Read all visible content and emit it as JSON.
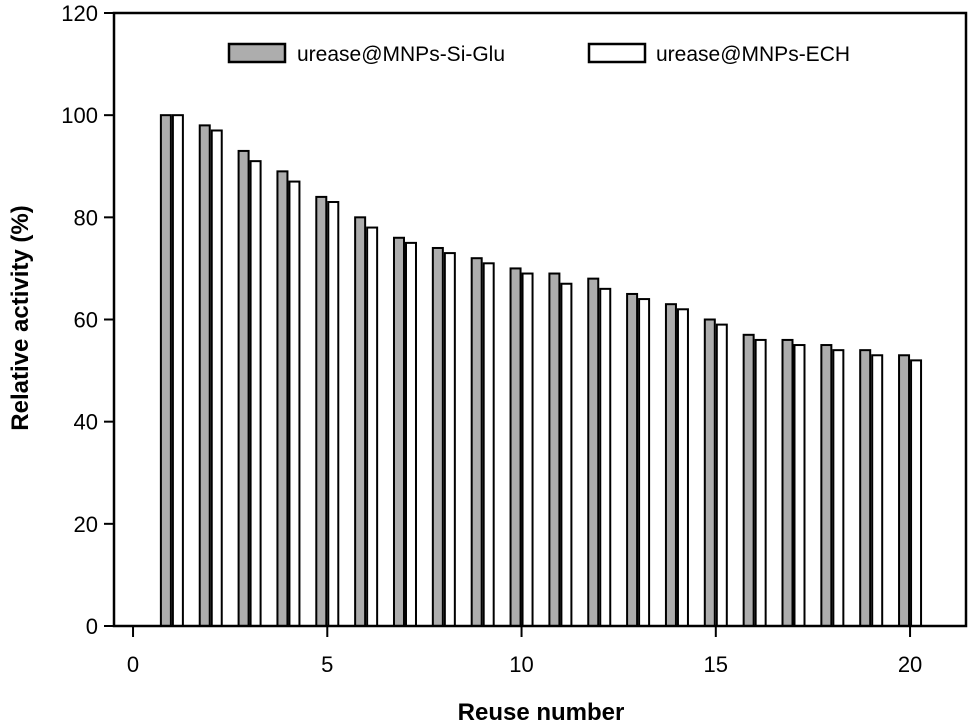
{
  "figure": {
    "background": "#ffffff",
    "axis_color": "#000000",
    "text_color": "#000000"
  },
  "chart_data": {
    "type": "bar",
    "title": "",
    "xlabel": "Reuse number",
    "ylabel": "Relative activity (%)",
    "x": [
      1,
      2,
      3,
      4,
      5,
      6,
      7,
      8,
      9,
      10,
      11,
      12,
      13,
      14,
      15,
      16,
      17,
      18,
      19,
      20
    ],
    "series": [
      {
        "name": "urease@MNPs-Si-Glu",
        "fill": "#adadad",
        "stroke": "#000000",
        "values": [
          100,
          98,
          93,
          89,
          84,
          80,
          76,
          74,
          72,
          70,
          69,
          68,
          65,
          63,
          60,
          57,
          56,
          55,
          54,
          53
        ]
      },
      {
        "name": "urease@MNPs-ECH",
        "fill": "#ffffff",
        "stroke": "#000000",
        "values": [
          100,
          97,
          91,
          87,
          83,
          78,
          75,
          73,
          71,
          69,
          67,
          66,
          64,
          62,
          59,
          56,
          55,
          54,
          53,
          52
        ]
      }
    ],
    "xlim": [
      -0.49,
      21.44
    ],
    "ylim": [
      0,
      120
    ],
    "x_ticks": [
      0,
      5,
      10,
      15,
      20
    ],
    "y_ticks": [
      0,
      20,
      40,
      60,
      80,
      100,
      120
    ],
    "grid": false,
    "legend_position": "top-inside"
  }
}
